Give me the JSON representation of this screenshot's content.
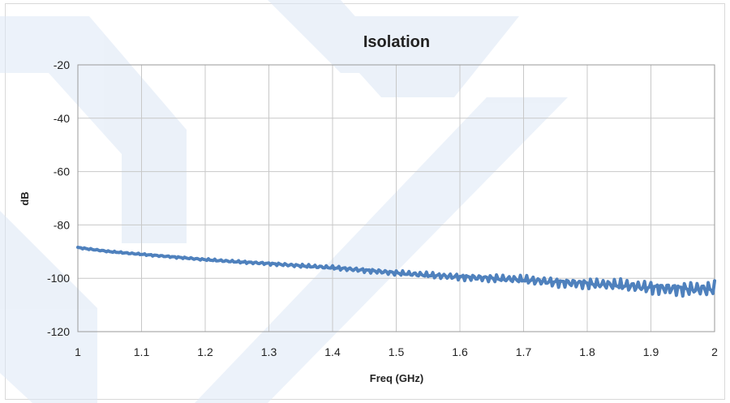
{
  "chart_data": {
    "type": "line",
    "title": "Isolation",
    "xlabel": "Freq (GHz)",
    "ylabel": "dB",
    "xlim": [
      1,
      2
    ],
    "ylim": [
      -120,
      -20
    ],
    "x_ticks": [
      "1",
      "1.1",
      "1.2",
      "1.3",
      "1.4",
      "1.5",
      "1.6",
      "1.7",
      "1.8",
      "1.9",
      "2"
    ],
    "y_ticks": [
      "-20",
      "-40",
      "-60",
      "-80",
      "-100",
      "-120"
    ],
    "grid": true,
    "legend": "none",
    "series": [
      {
        "color": "#4f81bd",
        "x": [
          1.0,
          1.05,
          1.1,
          1.15,
          1.2,
          1.25,
          1.3,
          1.35,
          1.4,
          1.45,
          1.5,
          1.55,
          1.6,
          1.65,
          1.7,
          1.75,
          1.8,
          1.85,
          1.9,
          1.95,
          2.0
        ],
        "y": [
          -88.5,
          -90.0,
          -91.0,
          -92.0,
          -93.0,
          -93.8,
          -94.5,
          -95.3,
          -96.0,
          -97.0,
          -98.0,
          -98.8,
          -99.5,
          -100.0,
          -100.5,
          -101.5,
          -102.0,
          -102.5,
          -103.5,
          -104.0,
          -104.0
        ]
      }
    ]
  },
  "colors": {
    "line": "#4f81bd",
    "watermark": "#ccdcf0"
  }
}
